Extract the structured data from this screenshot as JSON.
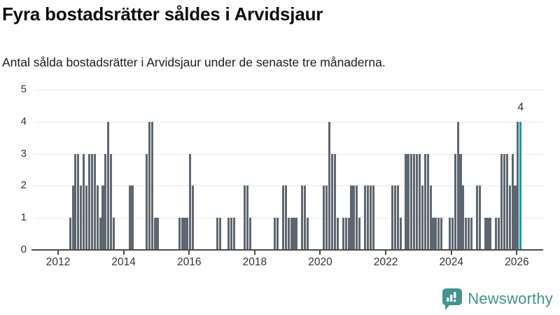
{
  "header": {
    "title": "Fyra bostadsrätter såldes i Arvidsjaur",
    "subtitle": "Antal sålda bostadsrätter i Arvidsjaur under de senaste tre månaderna."
  },
  "chart_data": {
    "type": "bar",
    "title": "Fyra bostadsrätter såldes i Arvidsjaur",
    "subtitle": "Antal sålda bostadsrätter i Arvidsjaur under de senaste tre månaderna.",
    "ylabel": "",
    "xlabel": "",
    "ylim": [
      0,
      5
    ],
    "grid": true,
    "x_start": "2012-05",
    "x_end": "2026-02",
    "cadence": "monthly",
    "x_tick_labels": [
      "2012",
      "2014",
      "2016",
      "2018",
      "2020",
      "2022",
      "2024",
      "2026"
    ],
    "y_tick_labels": [
      "0",
      "1",
      "2",
      "3",
      "4",
      "5"
    ],
    "values": [
      1,
      2,
      3,
      3,
      2,
      3,
      2,
      3,
      3,
      3,
      2,
      1,
      2,
      3,
      4,
      3,
      1,
      0,
      0,
      0,
      0,
      0,
      2,
      2,
      0,
      0,
      0,
      0,
      3,
      4,
      4,
      1,
      1,
      0,
      0,
      0,
      0,
      0,
      0,
      0,
      1,
      1,
      1,
      1,
      3,
      2,
      0,
      0,
      0,
      0,
      0,
      0,
      0,
      0,
      1,
      1,
      0,
      0,
      1,
      1,
      1,
      0,
      0,
      0,
      2,
      2,
      1,
      0,
      0,
      0,
      0,
      0,
      0,
      0,
      0,
      1,
      1,
      0,
      2,
      2,
      1,
      1,
      1,
      1,
      0,
      2,
      2,
      1,
      0,
      0,
      0,
      0,
      0,
      2,
      2,
      4,
      3,
      3,
      1,
      0,
      1,
      1,
      1,
      2,
      2,
      2,
      1,
      0,
      2,
      2,
      2,
      2,
      0,
      0,
      0,
      0,
      0,
      0,
      2,
      2,
      2,
      1,
      0,
      3,
      3,
      3,
      3,
      3,
      3,
      2,
      3,
      3,
      2,
      1,
      1,
      1,
      1,
      0,
      0,
      1,
      1,
      3,
      4,
      3,
      2,
      1,
      1,
      1,
      0,
      2,
      2,
      0,
      1,
      1,
      1,
      0,
      1,
      1,
      3,
      3,
      3,
      2,
      3,
      2,
      4,
      4
    ],
    "highlight_last_bar": true,
    "annotations": [
      {
        "text": "4",
        "month": "2026-02"
      }
    ],
    "colors": {
      "bar": "#5e6771",
      "highlight": "#00a2a2",
      "grid": "#e8e8e8",
      "axis": "#4d4d4d",
      "label": "#333333"
    },
    "legend": null
  },
  "footer": {
    "brand": "Newsworthy",
    "brand_color": "#44948f"
  }
}
